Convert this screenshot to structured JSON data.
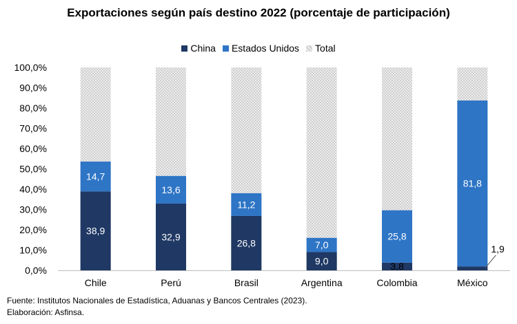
{
  "chart_data": {
    "type": "bar",
    "stacked": true,
    "title": "Exportaciones según país destino 2022 (porcentaje de participación)",
    "categories": [
      "Chile",
      "Perú",
      "Brasil",
      "Argentina",
      "Colombia",
      "México"
    ],
    "series": [
      {
        "name": "China",
        "values": [
          38.9,
          32.9,
          26.8,
          9.0,
          3.8,
          1.9
        ],
        "color": "#1f3864"
      },
      {
        "name": "Estados Unidos",
        "values": [
          14.7,
          13.6,
          11.2,
          7.0,
          25.8,
          81.8
        ],
        "color": "#2e75c6"
      },
      {
        "name": "Total",
        "values": [
          100,
          100,
          100,
          100,
          100,
          100
        ],
        "color": "#d9d9d9"
      }
    ],
    "data_labels": {
      "China": [
        "38,9",
        "32,9",
        "26,8",
        "9,0",
        "3,8",
        "1,9"
      ],
      "Estados Unidos": [
        "14,7",
        "13,6",
        "11,2",
        "7,0",
        "25,8",
        "81,8"
      ]
    },
    "ylim": [
      0,
      100
    ],
    "yticks": [
      "0,0%",
      "10,0%",
      "20,0%",
      "30,0%",
      "40,0%",
      "50,0%",
      "60,0%",
      "70,0%",
      "80,0%",
      "90,0%",
      "100,0%"
    ],
    "xlabel": "",
    "ylabel": "",
    "legend": "top"
  },
  "footer": {
    "source": "Fuente: Institutos Nacionales de Estadística, Aduanas y Bancos Centrales (2023).",
    "credit": "Elaboración: Asfinsa."
  }
}
